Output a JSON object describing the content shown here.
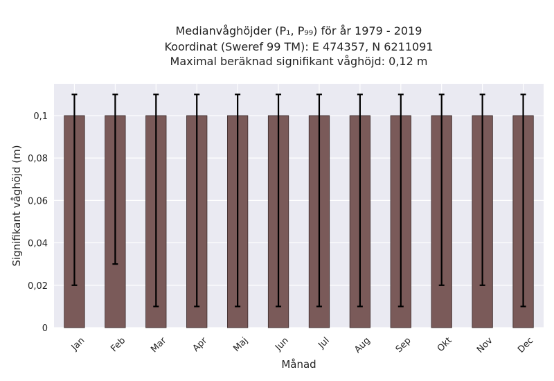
{
  "chart_data": {
    "type": "bar",
    "title_lines": [
      "Medianvåghöjder (P₁, P₉₉) för år 1979 - 2019",
      "Koordinat (Sweref 99 TM): E 474357, N 6211091",
      "Maximal beräknad signifikant våghöjd: 0,12 m"
    ],
    "xlabel": "Månad",
    "ylabel": "Signifikant våghöjd (m)",
    "categories": [
      "Jan",
      "Feb",
      "Mar",
      "Apr",
      "Maj",
      "Jun",
      "Jul",
      "Aug",
      "Sep",
      "Okt",
      "Nov",
      "Dec"
    ],
    "series": [
      {
        "values": [
          0.1,
          0.1,
          0.1,
          0.1,
          0.1,
          0.1,
          0.1,
          0.1,
          0.1,
          0.1,
          0.1,
          0.1
        ],
        "error_low": [
          0.02,
          0.03,
          0.01,
          0.01,
          0.01,
          0.01,
          0.01,
          0.01,
          0.01,
          0.02,
          0.02,
          0.01
        ],
        "error_high": [
          0.11,
          0.11,
          0.11,
          0.11,
          0.11,
          0.11,
          0.11,
          0.11,
          0.11,
          0.11,
          0.11,
          0.11
        ]
      }
    ],
    "yticks": [
      0,
      0.02,
      0.04,
      0.06,
      0.08,
      0.1
    ],
    "ytick_labels": [
      "0",
      "0,02",
      "0,04",
      "0,06",
      "0,08",
      "0,1"
    ],
    "ylim": [
      0,
      0.115
    ],
    "grid": true,
    "colors": {
      "bar": "#7a5a59",
      "bar_edge": "#3a2a2a",
      "plot_background": "#eaeaf2",
      "grid": "#ffffff",
      "error_bar": "#000000"
    }
  }
}
